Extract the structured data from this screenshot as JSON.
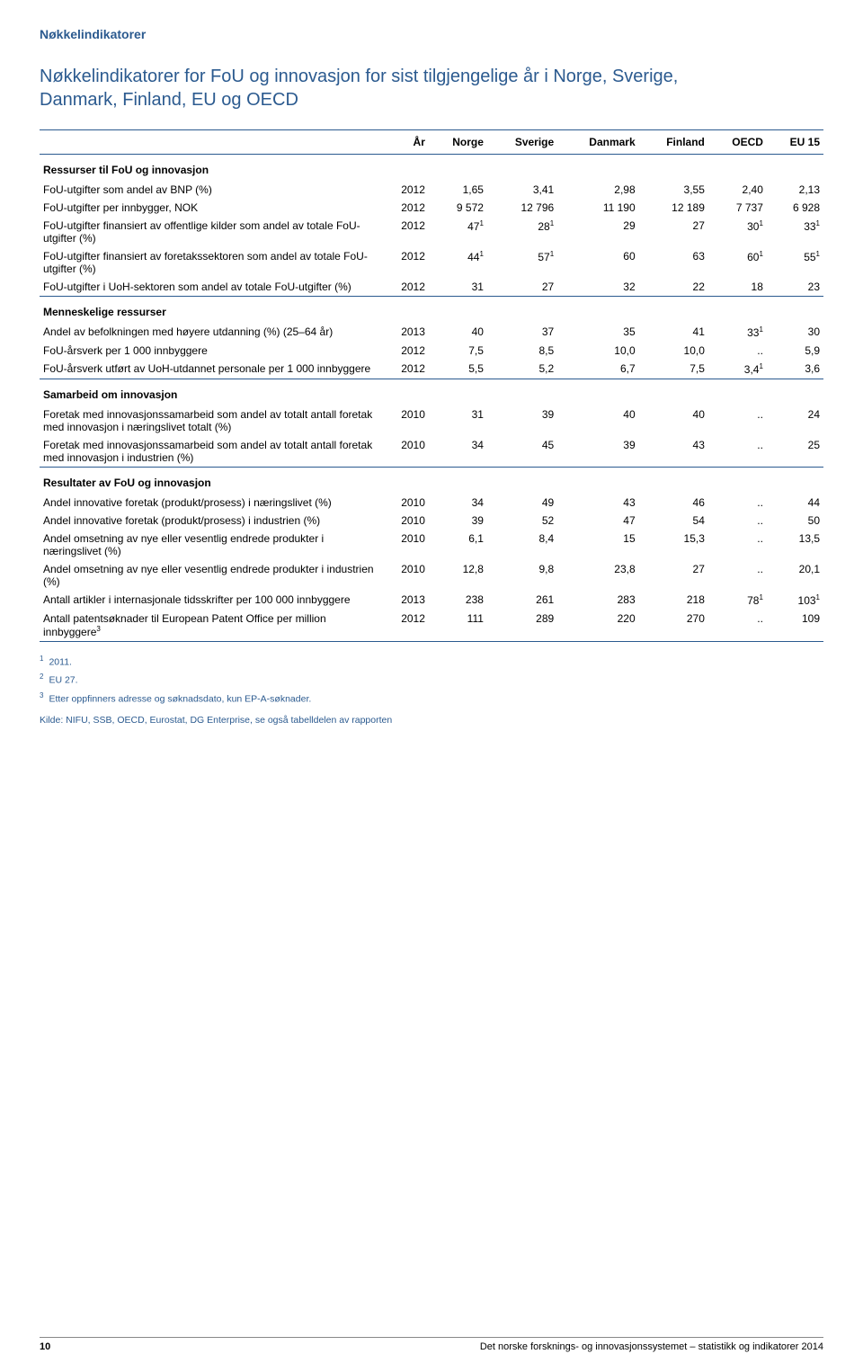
{
  "running_head": "Nøkkelindikatorer",
  "title": "Nøkkelindikatorer for FoU og innovasjon for sist tilgjengelige år i Norge, Sverige, Danmark, Finland, EU og OECD",
  "columns": [
    "År",
    "Norge",
    "Sverige",
    "Danmark",
    "Finland",
    "OECD",
    "EU 15"
  ],
  "sections": [
    {
      "label": "Ressurser til FoU og innovasjon",
      "rows": [
        {
          "label": "FoU-utgifter som andel av BNP (%)",
          "cells": [
            "2012",
            "1,65",
            "3,41",
            "2,98",
            "3,55",
            "2,40",
            "2,13"
          ]
        },
        {
          "label": "FoU-utgifter per innbygger, NOK",
          "cells": [
            "2012",
            "9 572",
            "12 796",
            "11 190",
            "12 189",
            "7 737",
            "6 928"
          ]
        },
        {
          "label": "FoU-utgifter finansiert av offentlige kilder som andel av totale FoU-utgifter (%)",
          "cells": [
            "2012",
            "47",
            "28",
            "29",
            "27",
            "30",
            "33"
          ],
          "sup": [
            null,
            1,
            1,
            null,
            null,
            1,
            1
          ]
        },
        {
          "label": "FoU-utgifter finansiert av foretakssektoren som andel av totale FoU-utgifter (%)",
          "cells": [
            "2012",
            "44",
            "57",
            "60",
            "63",
            "60",
            "55"
          ],
          "sup": [
            null,
            1,
            1,
            null,
            null,
            1,
            1
          ]
        },
        {
          "label": "FoU-utgifter i UoH-sektoren som andel av totale FoU-utgifter (%)",
          "cells": [
            "2012",
            "31",
            "27",
            "32",
            "22",
            "18",
            "23"
          ]
        }
      ]
    },
    {
      "label": "Menneskelige ressurser",
      "rows": [
        {
          "label": "Andel av befolkningen med høyere utdanning (%) (25–64 år)",
          "cells": [
            "2013",
            "40",
            "37",
            "35",
            "41",
            "33",
            "30"
          ],
          "sup": [
            null,
            null,
            null,
            null,
            null,
            1,
            null
          ]
        },
        {
          "label": "FoU-årsverk per 1 000 innbyggere",
          "cells": [
            "2012",
            "7,5",
            "8,5",
            "10,0",
            "10,0",
            "..",
            "5,9"
          ]
        },
        {
          "label": "FoU-årsverk utført av UoH-utdannet personale per 1 000 innbyggere",
          "cells": [
            "2012",
            "5,5",
            "5,2",
            "6,7",
            "7,5",
            "3,4",
            "3,6"
          ],
          "sup": [
            null,
            null,
            null,
            null,
            null,
            1,
            null
          ]
        }
      ]
    },
    {
      "label": "Samarbeid om innovasjon",
      "rows": [
        {
          "label": "Foretak med innovasjonssamarbeid som andel av totalt antall foretak med innovasjon i næringslivet totalt (%)",
          "cells": [
            "2010",
            "31",
            "39",
            "40",
            "40",
            "..",
            "24"
          ]
        },
        {
          "label": "Foretak med innovasjonssamarbeid som andel av totalt antall foretak med innovasjon i industrien (%)",
          "cells": [
            "2010",
            "34",
            "45",
            "39",
            "43",
            "..",
            "25"
          ]
        }
      ]
    },
    {
      "label": "Resultater av FoU og innovasjon",
      "rows": [
        {
          "label": "Andel innovative foretak (produkt/prosess) i næringslivet (%)",
          "cells": [
            "2010",
            "34",
            "49",
            "43",
            "46",
            "..",
            "44"
          ]
        },
        {
          "label": "Andel innovative foretak (produkt/prosess) i industrien (%)",
          "cells": [
            "2010",
            "39",
            "52",
            "47",
            "54",
            "..",
            "50"
          ]
        },
        {
          "label": "Andel omsetning av nye eller vesentlig endrede produkter i næringslivet (%)",
          "cells": [
            "2010",
            "6,1",
            "8,4",
            "15",
            "15,3",
            "..",
            "13,5"
          ]
        },
        {
          "label": "Andel omsetning av nye eller vesentlig endrede produkter i industrien (%)",
          "cells": [
            "2010",
            "12,8",
            "9,8",
            "23,8",
            "27",
            "..",
            "20,1"
          ]
        },
        {
          "label": "Antall artikler i internasjonale tidsskrifter per 100 000 innbyggere",
          "cells": [
            "2013",
            "238",
            "261",
            "283",
            "218",
            "78",
            "103"
          ],
          "sup": [
            null,
            null,
            null,
            null,
            null,
            1,
            1
          ]
        },
        {
          "label": "Antall patentsøknader til European Patent Office per million innbyggere",
          "labelsup": 3,
          "cells": [
            "2012",
            "111",
            "289",
            "220",
            "270",
            "..",
            "109"
          ]
        }
      ]
    }
  ],
  "footnotes": [
    {
      "n": "1",
      "text": "2011."
    },
    {
      "n": "2",
      "text": "EU 27."
    },
    {
      "n": "3",
      "text": "Etter oppfinners adresse og søknadsdato, kun EP-A-søknader."
    }
  ],
  "kilde": "Kilde: NIFU, SSB, OECD, Eurostat, DG Enterprise, se også tabelldelen av rapporten",
  "footer": {
    "page": "10",
    "caption": "Det norske forsknings- og innovasjonssystemet – statistikk og indikatorer 2014"
  }
}
